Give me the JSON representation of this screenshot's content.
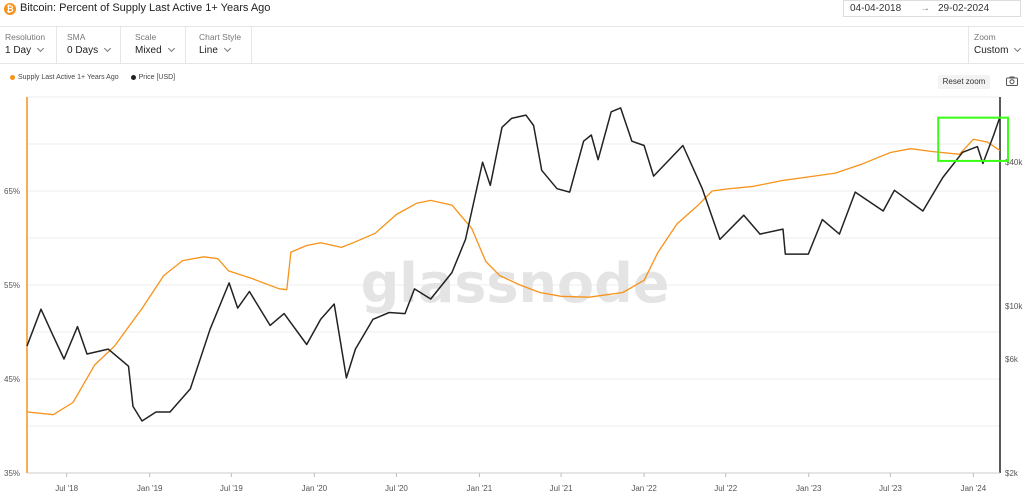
{
  "header": {
    "title": "Bitcoin: Percent of Supply Last Active 1+ Years Ago",
    "start_date": "04-04-2018",
    "end_date": "29-02-2024",
    "date_separator": "→"
  },
  "controls": [
    {
      "label": "Resolution",
      "value": "1 Day"
    },
    {
      "label": "SMA",
      "value": "0 Days"
    },
    {
      "label": "Scale",
      "value": "Mixed"
    },
    {
      "label": "Chart Style",
      "value": "Line"
    }
  ],
  "zoom": {
    "label": "Zoom",
    "value": "Custom"
  },
  "reset_zoom_label": "Reset zoom",
  "watermark": "glassnode",
  "colors": {
    "supply": "#f7931a",
    "price": "#222222",
    "highlight": "#39ff14",
    "grid": "#ececec"
  },
  "chart_data": {
    "type": "line",
    "legend_position": "top-left",
    "grid": true,
    "x_ticks": [
      "Jul '18",
      "Jan '19",
      "Jul '19",
      "Jan '20",
      "Jul '20",
      "Jan '21",
      "Jul '21",
      "Jan '22",
      "Jul '22",
      "Jan '23",
      "Jul '23",
      "Jan '24"
    ],
    "y_left": {
      "ticks": [
        "35%",
        "45%",
        "55%",
        "65%"
      ],
      "range": [
        35,
        75
      ]
    },
    "y_right": {
      "scale": "log",
      "ticks": [
        "$2k",
        "$6k",
        "$10k",
        "$40k"
      ],
      "range": [
        2000,
        75000
      ]
    },
    "series": [
      {
        "name": "Supply Last Active 1+ Years Ago",
        "axis": "left",
        "points": [
          [
            "2018-04-04",
            41.5
          ],
          [
            "2018-06-01",
            41.2
          ],
          [
            "2018-07-15",
            42.5
          ],
          [
            "2018-09-01",
            46.5
          ],
          [
            "2018-10-15",
            48.5
          ],
          [
            "2018-12-15",
            52.5
          ],
          [
            "2019-02-01",
            56.0
          ],
          [
            "2019-03-15",
            57.6
          ],
          [
            "2019-05-01",
            58.0
          ],
          [
            "2019-06-01",
            57.8
          ],
          [
            "2019-06-25",
            56.5
          ],
          [
            "2019-08-15",
            55.7
          ],
          [
            "2019-10-15",
            54.6
          ],
          [
            "2019-11-01",
            54.5
          ],
          [
            "2019-11-10",
            58.5
          ],
          [
            "2019-12-15",
            59.2
          ],
          [
            "2020-01-15",
            59.5
          ],
          [
            "2020-03-01",
            59.0
          ],
          [
            "2020-04-01",
            59.6
          ],
          [
            "2020-05-15",
            60.5
          ],
          [
            "2020-07-01",
            62.5
          ],
          [
            "2020-08-15",
            63.7
          ],
          [
            "2020-09-15",
            64.0
          ],
          [
            "2020-11-01",
            63.5
          ],
          [
            "2020-12-15",
            61.0
          ],
          [
            "2021-01-15",
            57.5
          ],
          [
            "2021-02-15",
            56.0
          ],
          [
            "2021-04-01",
            55.0
          ],
          [
            "2021-05-15",
            54.2
          ],
          [
            "2021-07-01",
            53.8
          ],
          [
            "2021-09-01",
            53.7
          ],
          [
            "2021-11-15",
            54.2
          ],
          [
            "2022-01-01",
            55.5
          ],
          [
            "2022-02-01",
            58.5
          ],
          [
            "2022-03-15",
            61.5
          ],
          [
            "2022-05-01",
            63.5
          ],
          [
            "2022-06-01",
            65.0
          ],
          [
            "2022-07-01",
            65.2
          ],
          [
            "2022-09-01",
            65.5
          ],
          [
            "2022-11-01",
            66.1
          ],
          [
            "2023-01-01",
            66.5
          ],
          [
            "2023-03-01",
            66.9
          ],
          [
            "2023-05-01",
            67.9
          ],
          [
            "2023-07-01",
            69.1
          ],
          [
            "2023-08-15",
            69.5
          ],
          [
            "2023-10-01",
            69.2
          ],
          [
            "2023-12-01",
            68.9
          ],
          [
            "2024-01-01",
            70.5
          ],
          [
            "2024-02-01",
            70.2
          ],
          [
            "2024-02-29",
            69.3
          ]
        ]
      },
      {
        "name": "Price [USD]",
        "axis": "right",
        "points": [
          [
            "2018-04-04",
            6800
          ],
          [
            "2018-05-05",
            9700
          ],
          [
            "2018-06-01",
            7500
          ],
          [
            "2018-06-25",
            6000
          ],
          [
            "2018-07-25",
            8200
          ],
          [
            "2018-08-15",
            6300
          ],
          [
            "2018-10-01",
            6600
          ],
          [
            "2018-11-15",
            5600
          ],
          [
            "2018-11-25",
            3800
          ],
          [
            "2018-12-15",
            3300
          ],
          [
            "2019-01-15",
            3600
          ],
          [
            "2019-02-15",
            3600
          ],
          [
            "2019-04-01",
            4500
          ],
          [
            "2019-05-15",
            8000
          ],
          [
            "2019-06-26",
            12500
          ],
          [
            "2019-07-15",
            9800
          ],
          [
            "2019-08-10",
            11500
          ],
          [
            "2019-09-25",
            8300
          ],
          [
            "2019-10-26",
            9300
          ],
          [
            "2019-12-15",
            6900
          ],
          [
            "2020-01-15",
            8800
          ],
          [
            "2020-02-14",
            10200
          ],
          [
            "2020-03-12",
            5000
          ],
          [
            "2020-04-01",
            6600
          ],
          [
            "2020-05-10",
            8800
          ],
          [
            "2020-06-15",
            9400
          ],
          [
            "2020-07-20",
            9300
          ],
          [
            "2020-08-10",
            11800
          ],
          [
            "2020-09-15",
            10700
          ],
          [
            "2020-11-01",
            13800
          ],
          [
            "2020-12-01",
            19000
          ],
          [
            "2021-01-08",
            40000
          ],
          [
            "2021-01-25",
            32000
          ],
          [
            "2021-02-20",
            56000
          ],
          [
            "2021-03-13",
            61000
          ],
          [
            "2021-04-14",
            63000
          ],
          [
            "2021-05-01",
            57000
          ],
          [
            "2021-05-19",
            37000
          ],
          [
            "2021-06-22",
            31000
          ],
          [
            "2021-07-20",
            30000
          ],
          [
            "2021-08-20",
            49000
          ],
          [
            "2021-09-06",
            52000
          ],
          [
            "2021-09-21",
            41000
          ],
          [
            "2021-10-20",
            65000
          ],
          [
            "2021-11-10",
            67500
          ],
          [
            "2021-12-05",
            49000
          ],
          [
            "2022-01-01",
            47000
          ],
          [
            "2022-01-22",
            35000
          ],
          [
            "2022-03-28",
            47000
          ],
          [
            "2022-05-10",
            31000
          ],
          [
            "2022-06-18",
            19000
          ],
          [
            "2022-08-10",
            24000
          ],
          [
            "2022-09-15",
            20000
          ],
          [
            "2022-11-05",
            21000
          ],
          [
            "2022-11-10",
            16500
          ],
          [
            "2022-12-31",
            16500
          ],
          [
            "2023-01-31",
            23000
          ],
          [
            "2023-03-10",
            20000
          ],
          [
            "2023-04-14",
            30000
          ],
          [
            "2023-06-15",
            25000
          ],
          [
            "2023-07-10",
            30500
          ],
          [
            "2023-09-11",
            25000
          ],
          [
            "2023-10-25",
            34500
          ],
          [
            "2023-12-08",
            44000
          ],
          [
            "2024-01-10",
            46500
          ],
          [
            "2024-01-22",
            39500
          ],
          [
            "2024-02-15",
            52000
          ],
          [
            "2024-02-29",
            62000
          ]
        ]
      }
    ],
    "highlight": {
      "x": [
        "2023-10-15",
        "2024-02-29"
      ],
      "y_left": [
        68.2,
        72.8
      ]
    }
  }
}
